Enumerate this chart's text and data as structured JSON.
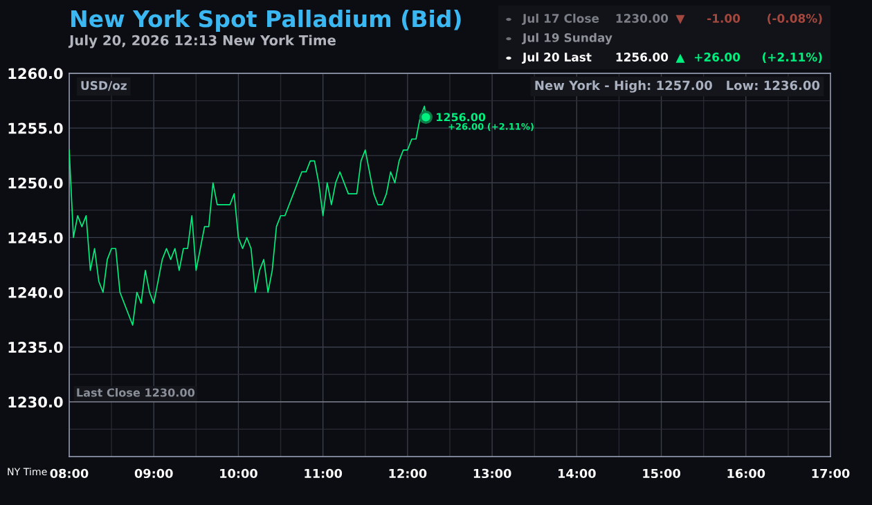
{
  "chart_data": {
    "type": "line",
    "title": "New York Spot Palladium (Bid)",
    "subtitle": "July 20, 2026 12:13 New York Time",
    "xlabel": "NY Time",
    "ylabel": "USD/oz",
    "series": [
      {
        "color": "#00f07f",
        "x": [
          8.0,
          8.05,
          8.1,
          8.15,
          8.2,
          8.25,
          8.3,
          8.35,
          8.4,
          8.45,
          8.5,
          8.55,
          8.6,
          8.75,
          8.8,
          8.85,
          8.9,
          8.95,
          9.0,
          9.1,
          9.15,
          9.2,
          9.25,
          9.3,
          9.35,
          9.4,
          9.45,
          9.5,
          9.6,
          9.65,
          9.7,
          9.75,
          9.9,
          9.95,
          10.0,
          10.05,
          10.1,
          10.15,
          10.2,
          10.25,
          10.3,
          10.35,
          10.4,
          10.45,
          10.5,
          10.55,
          10.75,
          10.8,
          10.85,
          10.9,
          10.95,
          11.0,
          11.05,
          11.1,
          11.15,
          11.2,
          11.3,
          11.4,
          11.45,
          11.5,
          11.6,
          11.65,
          11.7,
          11.75,
          11.8,
          11.85,
          11.9,
          11.95,
          12.0,
          12.05,
          12.1,
          12.15,
          12.2,
          12.2167
        ],
        "values": [
          1253,
          1245,
          1247,
          1246,
          1247,
          1242,
          1244,
          1241,
          1240,
          1243,
          1244,
          1244,
          1240,
          1237,
          1240,
          1239,
          1242,
          1240,
          1239,
          1243,
          1244,
          1243,
          1244,
          1242,
          1244,
          1244,
          1247,
          1242,
          1246,
          1246,
          1250,
          1248,
          1248,
          1249,
          1245,
          1244,
          1245,
          1244,
          1240,
          1242,
          1243,
          1240,
          1242,
          1246,
          1247,
          1247,
          1251,
          1251,
          1252,
          1252,
          1250,
          1247,
          1250,
          1248,
          1250,
          1251,
          1249,
          1249,
          1252,
          1253,
          1249,
          1248,
          1248,
          1249,
          1251,
          1250,
          1252,
          1253,
          1253,
          1254,
          1254,
          1256,
          1257,
          1256
        ]
      },
      {
        "type": "scatter",
        "color": "#00f07f",
        "x": [
          12.2167
        ],
        "values": [
          1256
        ]
      }
    ],
    "xlim": [
      8,
      17
    ],
    "xticks": [
      {
        "value": 8,
        "label": "08:00"
      },
      {
        "value": 8.5,
        "label": null
      },
      {
        "value": 9,
        "label": "09:00"
      },
      {
        "value": 9.5,
        "label": null
      },
      {
        "value": 10,
        "label": "10:00"
      },
      {
        "value": 10.5,
        "label": null
      },
      {
        "value": 11,
        "label": "11:00"
      },
      {
        "value": 11.5,
        "label": null
      },
      {
        "value": 12,
        "label": "12:00"
      },
      {
        "value": 12.5,
        "label": null
      },
      {
        "value": 13,
        "label": "13:00"
      },
      {
        "value": 13.5,
        "label": null
      },
      {
        "value": 14,
        "label": "14:00"
      },
      {
        "value": 14.5,
        "label": null
      },
      {
        "value": 15,
        "label": "15:00"
      },
      {
        "value": 15.5,
        "label": null
      },
      {
        "value": 16,
        "label": "16:00"
      },
      {
        "value": 16.5,
        "label": null
      },
      {
        "value": 17,
        "label": "17:00"
      }
    ],
    "ylim": [
      1225,
      1260
    ],
    "yticks": [
      {
        "value": 1227.5,
        "label": null
      },
      {
        "value": 1230,
        "label": "1230.0"
      },
      {
        "value": 1232.5,
        "label": null
      },
      {
        "value": 1235,
        "label": "1235.0"
      },
      {
        "value": 1237.5,
        "label": null
      },
      {
        "value": 1240,
        "label": "1240.0"
      },
      {
        "value": 1242.5,
        "label": null
      },
      {
        "value": 1245,
        "label": "1245.0"
      },
      {
        "value": 1247.5,
        "label": null
      },
      {
        "value": 1250,
        "label": "1250.0"
      },
      {
        "value": 1252.5,
        "label": null
      },
      {
        "value": 1255,
        "label": "1255.0"
      },
      {
        "value": 1257.5,
        "label": null
      },
      {
        "value": 1260,
        "label": "1260.0"
      }
    ],
    "grid": true,
    "ref_lines": [
      {
        "axis": "y",
        "value": 1230,
        "label": "Last Close 1230.00",
        "color": "#8a8e98"
      }
    ],
    "annotations": [
      "Jul 17 Close",
      "1230.00",
      "▼",
      "-1.00",
      "(-0.08%)",
      "Jul 19 Sunday",
      "Jul 20 Last",
      "1256.00",
      "▲",
      "+26.00",
      "(+2.11%)",
      "New York - High: 1257.00   Low: 1236.00",
      {
        "text": "1256.00",
        "x": 12.2167,
        "y": 1256
      },
      "+26.00 (+2.11%)"
    ]
  }
}
